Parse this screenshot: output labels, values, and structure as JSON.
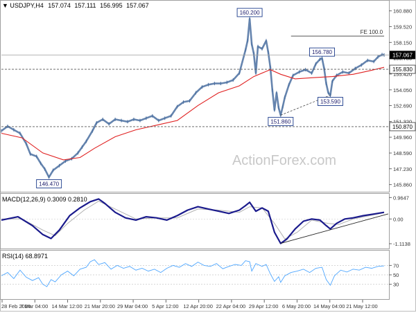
{
  "chart_data": {
    "type": "line",
    "symbol": "USDJPY,H4",
    "ohlc": [
      "157.074",
      "157.111",
      "156.995",
      "157.067"
    ],
    "watermark": "ActionForex.com",
    "colors": {
      "price": "#4a6fa0",
      "sma": "#e02020",
      "macd": "#1a1a8c",
      "signal": "#b0b0b0",
      "rsi": "#4da6ff",
      "label_border": "#1a3a8a",
      "level_line": "#555555",
      "current_label_bg": "#000000"
    },
    "x_labels": [
      "28 Feb 2024",
      "7 Mar 04:00",
      "14 Mar 12:00",
      "21 Mar 20:00",
      "29 Mar 04:00",
      "5 Apr 12:00",
      "12 Apr 20:00",
      "22 Apr 04:00",
      "29 Apr 12:00",
      "6 May 20:00",
      "14 May 04:00",
      "21 May 12:00"
    ],
    "main": {
      "ylim": [
        145.3,
        161.7
      ],
      "y_ticks": [
        "160.880",
        "159.520",
        "158.150",
        "156.780",
        "155.420",
        "154.050",
        "152.690",
        "151.320",
        "149.960",
        "148.590",
        "147.230",
        "145.860"
      ],
      "price": [
        [
          0,
          150.5
        ],
        [
          3,
          150.9
        ],
        [
          6,
          150.6
        ],
        [
          9,
          150.3
        ],
        [
          12,
          149.4
        ],
        [
          14,
          148.5
        ],
        [
          17,
          148.3
        ],
        [
          19,
          147.7
        ],
        [
          21,
          147.2
        ],
        [
          23,
          146.5
        ],
        [
          25,
          147.1
        ],
        [
          28,
          147.5
        ],
        [
          31,
          147.9
        ],
        [
          34,
          148.1
        ],
        [
          37,
          148.6
        ],
        [
          39,
          149.1
        ],
        [
          41,
          149.6
        ],
        [
          44,
          150.5
        ],
        [
          46,
          151.2
        ],
        [
          49,
          151.5
        ],
        [
          52,
          151.1
        ],
        [
          55,
          151.5
        ],
        [
          58,
          151.4
        ],
        [
          61,
          151.3
        ],
        [
          64,
          151.5
        ],
        [
          67,
          151.4
        ],
        [
          70,
          151.6
        ],
        [
          73,
          151.8
        ],
        [
          76,
          151.4
        ],
        [
          79,
          151.6
        ],
        [
          82,
          151.8
        ],
        [
          85,
          152.6
        ],
        [
          88,
          153.0
        ],
        [
          91,
          153.1
        ],
        [
          94,
          153.8
        ],
        [
          97,
          154.3
        ],
        [
          100,
          154.5
        ],
        [
          103,
          154.6
        ],
        [
          106,
          154.6
        ],
        [
          109,
          154.7
        ],
        [
          112,
          154.9
        ],
        [
          115,
          155.5
        ],
        [
          118,
          157.5
        ],
        [
          119,
          158.3
        ],
        [
          120,
          160.2
        ],
        [
          121,
          158.0
        ],
        [
          122,
          157.2
        ],
        [
          123,
          155.5
        ],
        [
          124,
          157.8
        ],
        [
          126,
          157.6
        ],
        [
          128,
          158.3
        ],
        [
          129,
          157.3
        ],
        [
          130,
          156.0
        ],
        [
          131,
          154.0
        ],
        [
          132,
          152.3
        ],
        [
          133,
          153.8
        ],
        [
          134,
          152.5
        ],
        [
          135,
          151.86
        ],
        [
          136,
          152.6
        ],
        [
          137,
          153.4
        ],
        [
          139,
          154.5
        ],
        [
          141,
          155.3
        ],
        [
          144,
          155.6
        ],
        [
          147,
          155.8
        ],
        [
          150,
          155.5
        ],
        [
          152,
          156.3
        ],
        [
          154,
          156.7
        ],
        [
          155,
          156.78
        ],
        [
          156,
          155.9
        ],
        [
          157,
          154.6
        ],
        [
          158,
          153.8
        ],
        [
          159,
          153.59
        ],
        [
          160,
          154.8
        ],
        [
          162,
          155.3
        ],
        [
          165,
          155.6
        ],
        [
          168,
          155.5
        ],
        [
          171,
          155.9
        ],
        [
          174,
          156.2
        ],
        [
          177,
          156.6
        ],
        [
          180,
          156.5
        ],
        [
          182,
          156.9
        ],
        [
          184,
          157.1
        ],
        [
          185,
          157.067
        ]
      ],
      "sma": [
        [
          0,
          150.3
        ],
        [
          10,
          149.9
        ],
        [
          20,
          148.6
        ],
        [
          30,
          148.0
        ],
        [
          38,
          148.2
        ],
        [
          45,
          149.0
        ],
        [
          55,
          150.0
        ],
        [
          65,
          150.6
        ],
        [
          75,
          151.0
        ],
        [
          85,
          151.4
        ],
        [
          95,
          152.7
        ],
        [
          105,
          153.8
        ],
        [
          115,
          154.4
        ],
        [
          122,
          155.2
        ],
        [
          130,
          155.8
        ],
        [
          135,
          155.4
        ],
        [
          142,
          155.0
        ],
        [
          150,
          155.1
        ],
        [
          160,
          155.2
        ],
        [
          170,
          155.4
        ],
        [
          178,
          155.7
        ],
        [
          185,
          156.0
        ]
      ],
      "levels": [
        {
          "value": 155.83,
          "label": "155.830",
          "style": "dashed"
        },
        {
          "value": 150.87,
          "label": "150.870",
          "style": "dashed"
        },
        {
          "value": 157.067,
          "label": "157.067",
          "style": "solid-current"
        }
      ],
      "fe_line": {
        "value": 158.7,
        "x_from": 140,
        "x_to": 185,
        "label": "FE 100.0"
      },
      "annotations": [
        {
          "text": "160.200",
          "x": 120,
          "value": 160.2,
          "pos": "above"
        },
        {
          "text": "146.470",
          "x": 23,
          "value": 146.47,
          "pos": "below"
        },
        {
          "text": "151.860",
          "x": 135,
          "value": 151.86,
          "pos": "below"
        },
        {
          "text": "153.590",
          "x": 159,
          "value": 153.59,
          "pos": "below"
        },
        {
          "text": "156.780",
          "x": 155,
          "value": 156.78,
          "pos": "above"
        }
      ],
      "trendline": {
        "from": [
          135,
          151.86
        ],
        "to": [
          159,
          153.59
        ],
        "style": "dashed"
      }
    },
    "macd": {
      "label": "MACD(12,26,9) 0.3009 0.2810",
      "ylim": [
        -1.3,
        1.1
      ],
      "y_ticks": [
        {
          "value": 0.9647,
          "label": "0.9647"
        },
        {
          "value": 0,
          "label": "0.00"
        },
        {
          "value": -1.1138,
          "label": "-1.1138"
        }
      ],
      "macd": [
        [
          0,
          -0.05
        ],
        [
          8,
          0.1
        ],
        [
          15,
          -0.3
        ],
        [
          20,
          -0.7
        ],
        [
          24,
          -0.88
        ],
        [
          28,
          -0.5
        ],
        [
          33,
          0.15
        ],
        [
          38,
          0.5
        ],
        [
          43,
          0.78
        ],
        [
          47,
          0.9
        ],
        [
          50,
          0.7
        ],
        [
          55,
          0.3
        ],
        [
          60,
          0.05
        ],
        [
          65,
          -0.05
        ],
        [
          70,
          0.1
        ],
        [
          75,
          0.05
        ],
        [
          80,
          -0.05
        ],
        [
          85,
          0.15
        ],
        [
          90,
          0.4
        ],
        [
          95,
          0.55
        ],
        [
          100,
          0.45
        ],
        [
          105,
          0.35
        ],
        [
          110,
          0.25
        ],
        [
          115,
          0.4
        ],
        [
          118,
          0.6
        ],
        [
          120,
          0.75
        ],
        [
          123,
          0.35
        ],
        [
          126,
          0.5
        ],
        [
          129,
          0.35
        ],
        [
          132,
          -0.6
        ],
        [
          135,
          -1.1
        ],
        [
          138,
          -0.9
        ],
        [
          142,
          -0.45
        ],
        [
          146,
          -0.1
        ],
        [
          150,
          0.0
        ],
        [
          154,
          -0.05
        ],
        [
          157,
          -0.3
        ],
        [
          159,
          -0.45
        ],
        [
          162,
          -0.2
        ],
        [
          166,
          0.0
        ],
        [
          170,
          0.05
        ],
        [
          175,
          0.15
        ],
        [
          180,
          0.22
        ],
        [
          185,
          0.3
        ]
      ],
      "signal": [
        [
          0,
          0.0
        ],
        [
          10,
          0.0
        ],
        [
          20,
          -0.5
        ],
        [
          26,
          -0.75
        ],
        [
          32,
          -0.2
        ],
        [
          40,
          0.4
        ],
        [
          47,
          0.8
        ],
        [
          55,
          0.45
        ],
        [
          65,
          0.0
        ],
        [
          75,
          0.05
        ],
        [
          85,
          0.05
        ],
        [
          95,
          0.45
        ],
        [
          105,
          0.4
        ],
        [
          115,
          0.3
        ],
        [
          120,
          0.55
        ],
        [
          126,
          0.5
        ],
        [
          132,
          -0.2
        ],
        [
          137,
          -0.9
        ],
        [
          143,
          -0.6
        ],
        [
          150,
          -0.05
        ],
        [
          158,
          -0.2
        ],
        [
          163,
          -0.25
        ],
        [
          170,
          0.0
        ],
        [
          178,
          0.15
        ],
        [
          185,
          0.28
        ]
      ],
      "trendline": {
        "from": [
          135,
          -1.1
        ],
        "to": [
          187,
          0.23
        ]
      }
    },
    "rsi": {
      "label": "RSI(14) 68.8971",
      "ylim": [
        0,
        100
      ],
      "y_ticks": [
        70,
        50,
        30
      ],
      "values": [
        [
          0,
          48
        ],
        [
          3,
          55
        ],
        [
          6,
          42
        ],
        [
          9,
          60
        ],
        [
          12,
          45
        ],
        [
          15,
          38
        ],
        [
          18,
          44
        ],
        [
          20,
          30
        ],
        [
          22,
          25
        ],
        [
          24,
          40
        ],
        [
          26,
          35
        ],
        [
          29,
          50
        ],
        [
          32,
          58
        ],
        [
          35,
          48
        ],
        [
          38,
          62
        ],
        [
          41,
          66
        ],
        [
          43,
          78
        ],
        [
          45,
          82
        ],
        [
          47,
          72
        ],
        [
          50,
          76
        ],
        [
          53,
          62
        ],
        [
          56,
          70
        ],
        [
          59,
          64
        ],
        [
          62,
          68
        ],
        [
          65,
          60
        ],
        [
          68,
          64
        ],
        [
          71,
          58
        ],
        [
          74,
          62
        ],
        [
          77,
          55
        ],
        [
          80,
          64
        ],
        [
          83,
          70
        ],
        [
          86,
          66
        ],
        [
          89,
          74
        ],
        [
          92,
          68
        ],
        [
          95,
          77
        ],
        [
          98,
          70
        ],
        [
          101,
          68
        ],
        [
          104,
          74
        ],
        [
          107,
          63
        ],
        [
          110,
          68
        ],
        [
          113,
          72
        ],
        [
          116,
          70
        ],
        [
          118,
          80
        ],
        [
          120,
          78
        ],
        [
          121,
          58
        ],
        [
          123,
          74
        ],
        [
          126,
          68
        ],
        [
          128,
          72
        ],
        [
          130,
          52
        ],
        [
          132,
          36
        ],
        [
          134,
          46
        ],
        [
          135,
          34
        ],
        [
          137,
          48
        ],
        [
          140,
          55
        ],
        [
          143,
          58
        ],
        [
          146,
          62
        ],
        [
          149,
          55
        ],
        [
          152,
          64
        ],
        [
          155,
          66
        ],
        [
          157,
          40
        ],
        [
          159,
          28
        ],
        [
          161,
          48
        ],
        [
          164,
          60
        ],
        [
          167,
          56
        ],
        [
          170,
          62
        ],
        [
          173,
          60
        ],
        [
          176,
          66
        ],
        [
          179,
          64
        ],
        [
          182,
          68
        ],
        [
          185,
          68.9
        ]
      ]
    }
  }
}
